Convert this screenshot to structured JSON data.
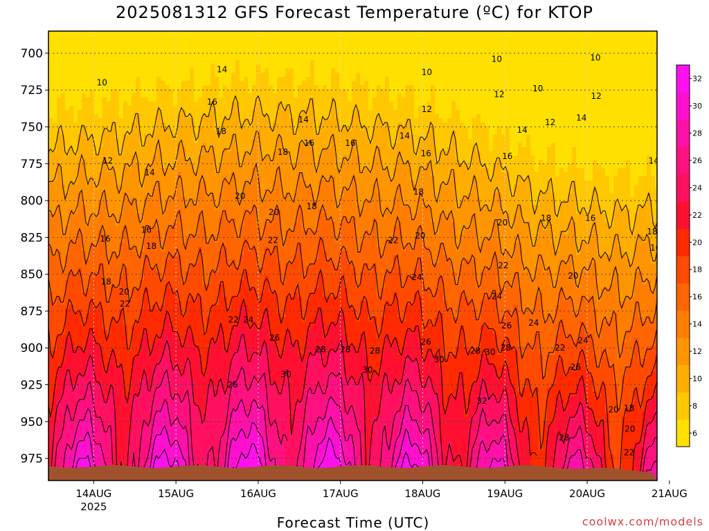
{
  "chart_data": {
    "type": "heatmap",
    "title": "2025081312 GFS Forecast Temperature (ºC) for KTOP",
    "xlabel": "Forecast Time (UTC)",
    "ylabel": "",
    "credit": "coolwx.com/models",
    "x_ticks": [
      "14AUG",
      "15AUG",
      "16AUG",
      "17AUG",
      "18AUG",
      "19AUG",
      "20AUG",
      "21AUG"
    ],
    "x_year": "2025",
    "y_ticks": [
      700,
      725,
      750,
      775,
      800,
      825,
      850,
      875,
      900,
      925,
      950,
      975
    ],
    "y_axis": "pressure (hPa), increasing downward",
    "ylim": [
      685,
      990
    ],
    "grid": true,
    "colorbar": {
      "levels": [
        6,
        8,
        10,
        12,
        14,
        16,
        18,
        20,
        22,
        24,
        26,
        28,
        30,
        32
      ],
      "colors": [
        "#ffe000",
        "#ffc800",
        "#ffae00",
        "#ff9500",
        "#ff7e00",
        "#ff6500",
        "#ff4a00",
        "#ff2a00",
        "#ff1030",
        "#ff1060",
        "#ff1080",
        "#ff10a8",
        "#ff10d0",
        "#ff10f0"
      ]
    },
    "contour_levels": [
      10,
      12,
      14,
      16,
      18,
      20,
      22,
      24,
      26,
      28,
      30,
      32
    ],
    "contour_labels": [
      {
        "value": "10",
        "day": 0.1,
        "p": 720
      },
      {
        "value": "12",
        "day": 0.17,
        "p": 773
      },
      {
        "value": "14",
        "day": 1.56,
        "p": 711
      },
      {
        "value": "14",
        "day": 0.68,
        "p": 781
      },
      {
        "value": "16",
        "day": 1.44,
        "p": 733
      },
      {
        "value": "16",
        "day": 0.64,
        "p": 820
      },
      {
        "value": "16",
        "day": 0.14,
        "p": 826
      },
      {
        "value": "18",
        "day": 1.55,
        "p": 753
      },
      {
        "value": "18",
        "day": 0.7,
        "p": 831
      },
      {
        "value": "18",
        "day": 0.15,
        "p": 855
      },
      {
        "value": "20",
        "day": 0.37,
        "p": 862
      },
      {
        "value": "22",
        "day": 0.38,
        "p": 870
      },
      {
        "value": "20",
        "day": 1.78,
        "p": 797
      },
      {
        "value": "20",
        "day": 2.19,
        "p": 808
      },
      {
        "value": "22",
        "day": 2.18,
        "p": 827
      },
      {
        "value": "14",
        "day": 2.55,
        "p": 745
      },
      {
        "value": "16",
        "day": 2.62,
        "p": 761
      },
      {
        "value": "18",
        "day": 2.3,
        "p": 767
      },
      {
        "value": "24",
        "day": 1.88,
        "p": 881
      },
      {
        "value": "22",
        "day": 1.7,
        "p": 881
      },
      {
        "value": "26",
        "day": 2.2,
        "p": 893
      },
      {
        "value": "28",
        "day": 2.76,
        "p": 901
      },
      {
        "value": "26",
        "day": 1.69,
        "p": 925
      },
      {
        "value": "30",
        "day": 2.34,
        "p": 918
      },
      {
        "value": "10",
        "day": 4.05,
        "p": 713
      },
      {
        "value": "12",
        "day": 4.05,
        "p": 738
      },
      {
        "value": "14",
        "day": 3.78,
        "p": 756
      },
      {
        "value": "16",
        "day": 3.12,
        "p": 761
      },
      {
        "value": "18",
        "day": 3.95,
        "p": 794
      },
      {
        "value": "20",
        "day": 3.97,
        "p": 824
      },
      {
        "value": "22",
        "day": 3.64,
        "p": 827
      },
      {
        "value": "24",
        "day": 3.93,
        "p": 852
      },
      {
        "value": "28",
        "day": 3.42,
        "p": 902
      },
      {
        "value": "28",
        "day": 3.06,
        "p": 901
      },
      {
        "value": "30",
        "day": 3.33,
        "p": 915
      },
      {
        "value": "26",
        "day": 4.04,
        "p": 896
      },
      {
        "value": "30",
        "day": 4.2,
        "p": 908
      },
      {
        "value": "28",
        "day": 4.64,
        "p": 902
      },
      {
        "value": "16",
        "day": 4.04,
        "p": 768
      },
      {
        "value": "10",
        "day": 4.9,
        "p": 704
      },
      {
        "value": "12",
        "day": 4.93,
        "p": 728
      },
      {
        "value": "14",
        "day": 5.21,
        "p": 752
      },
      {
        "value": "16",
        "day": 5.03,
        "p": 770
      },
      {
        "value": "20",
        "day": 4.97,
        "p": 815
      },
      {
        "value": "22",
        "day": 4.98,
        "p": 844
      },
      {
        "value": "24",
        "day": 4.9,
        "p": 865
      },
      {
        "value": "26",
        "day": 5.02,
        "p": 885
      },
      {
        "value": "28",
        "day": 5.01,
        "p": 900
      },
      {
        "value": "30",
        "day": 4.82,
        "p": 903
      },
      {
        "value": "32",
        "day": 4.72,
        "p": 936
      },
      {
        "value": "10",
        "day": 5.4,
        "p": 724
      },
      {
        "value": "12",
        "day": 5.55,
        "p": 747
      },
      {
        "value": "14",
        "day": 5.93,
        "p": 744
      },
      {
        "value": "10",
        "day": 6.1,
        "p": 703
      },
      {
        "value": "12",
        "day": 6.11,
        "p": 729
      },
      {
        "value": "18",
        "day": 5.5,
        "p": 812
      },
      {
        "value": "16",
        "day": 6.04,
        "p": 812
      },
      {
        "value": "20",
        "day": 5.83,
        "p": 851
      },
      {
        "value": "24",
        "day": 5.35,
        "p": 883
      },
      {
        "value": "22",
        "day": 5.67,
        "p": 900
      },
      {
        "value": "24",
        "day": 5.95,
        "p": 895
      },
      {
        "value": "26",
        "day": 5.86,
        "p": 913
      },
      {
        "value": "28",
        "day": 5.72,
        "p": 961
      },
      {
        "value": "20",
        "day": 6.32,
        "p": 942
      },
      {
        "value": "18",
        "day": 6.51,
        "p": 941
      },
      {
        "value": "20",
        "day": 6.52,
        "p": 955
      },
      {
        "value": "22",
        "day": 6.51,
        "p": 971
      },
      {
        "value": "18",
        "day": 6.79,
        "p": 821
      },
      {
        "value": "16",
        "day": 6.83,
        "p": 832
      },
      {
        "value": "14",
        "day": 6.81,
        "p": 773
      },
      {
        "value": "18",
        "day": 2.65,
        "p": 804
      }
    ]
  }
}
